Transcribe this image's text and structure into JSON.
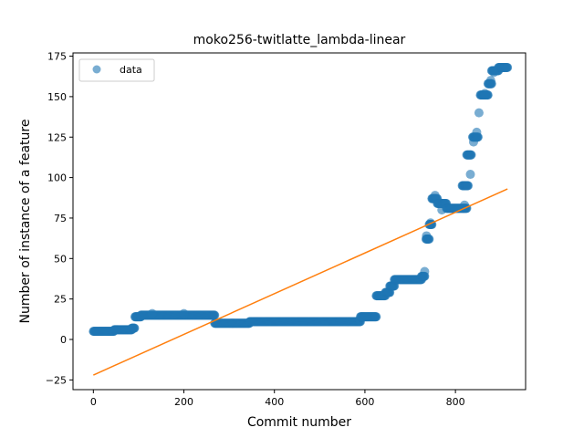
{
  "chart_data": {
    "type": "scatter",
    "title": "moko256-twitlatte_lambda-linear",
    "xlabel": "Commit number",
    "ylabel": "Number of instance of a feature",
    "xlim": [
      -45,
      955
    ],
    "ylim": [
      -31,
      177
    ],
    "xticks": [
      0,
      200,
      400,
      600,
      800
    ],
    "yticks": [
      -25,
      0,
      25,
      50,
      75,
      100,
      125,
      150,
      175
    ],
    "grid": false,
    "legend": {
      "position": "top-left",
      "entries": [
        "data"
      ]
    },
    "colors": {
      "data": "#1f77b4",
      "fit": "#ff7f0e"
    },
    "series": [
      {
        "name": "data",
        "type": "scatter",
        "segments": [
          {
            "x0": 0,
            "x1": 45,
            "y": 5
          },
          {
            "x0": 46,
            "x1": 85,
            "y": 6
          },
          {
            "x0": 85,
            "x1": 91,
            "y": 7
          },
          {
            "x0": 92,
            "x1": 105,
            "y": 14
          },
          {
            "x0": 105,
            "x1": 268,
            "y": 15
          },
          {
            "x0": 268,
            "x1": 345,
            "y": 10
          },
          {
            "x0": 345,
            "x1": 545,
            "y": 11
          },
          {
            "x0": 545,
            "x1": 590,
            "y": 11
          },
          {
            "x0": 590,
            "x1": 625,
            "y": 14
          },
          {
            "x0": 625,
            "x1": 645,
            "y": 27
          },
          {
            "x0": 645,
            "x1": 655,
            "y": 29
          },
          {
            "x0": 655,
            "x1": 665,
            "y": 33
          },
          {
            "x0": 665,
            "x1": 725,
            "y": 37
          },
          {
            "x0": 725,
            "x1": 732,
            "y": 39
          },
          {
            "x0": 735,
            "x1": 742,
            "y": 62
          },
          {
            "x0": 742,
            "x1": 748,
            "y": 71
          },
          {
            "x0": 748,
            "x1": 760,
            "y": 87
          },
          {
            "x0": 760,
            "x1": 780,
            "y": 84
          },
          {
            "x0": 780,
            "x1": 825,
            "y": 81
          },
          {
            "x0": 815,
            "x1": 828,
            "y": 95
          },
          {
            "x0": 825,
            "x1": 835,
            "y": 114
          },
          {
            "x0": 838,
            "x1": 850,
            "y": 125
          },
          {
            "x0": 855,
            "x1": 872,
            "y": 151
          },
          {
            "x0": 872,
            "x1": 880,
            "y": 158
          },
          {
            "x0": 880,
            "x1": 895,
            "y": 166
          },
          {
            "x0": 895,
            "x1": 915,
            "y": 168
          }
        ],
        "points": [
          {
            "x": 200,
            "y": 16
          },
          {
            "x": 130,
            "y": 16
          },
          {
            "x": 732,
            "y": 42
          },
          {
            "x": 736,
            "y": 64
          },
          {
            "x": 745,
            "y": 72
          },
          {
            "x": 755,
            "y": 89
          },
          {
            "x": 770,
            "y": 80
          },
          {
            "x": 820,
            "y": 83
          },
          {
            "x": 833,
            "y": 102
          },
          {
            "x": 847,
            "y": 128
          },
          {
            "x": 852,
            "y": 140
          },
          {
            "x": 840,
            "y": 122
          },
          {
            "x": 865,
            "y": 152
          },
          {
            "x": 878,
            "y": 160
          },
          {
            "x": 885,
            "y": 165
          }
        ]
      },
      {
        "type": "line",
        "x": [
          0,
          915
        ],
        "y": [
          -22,
          93
        ]
      }
    ]
  }
}
